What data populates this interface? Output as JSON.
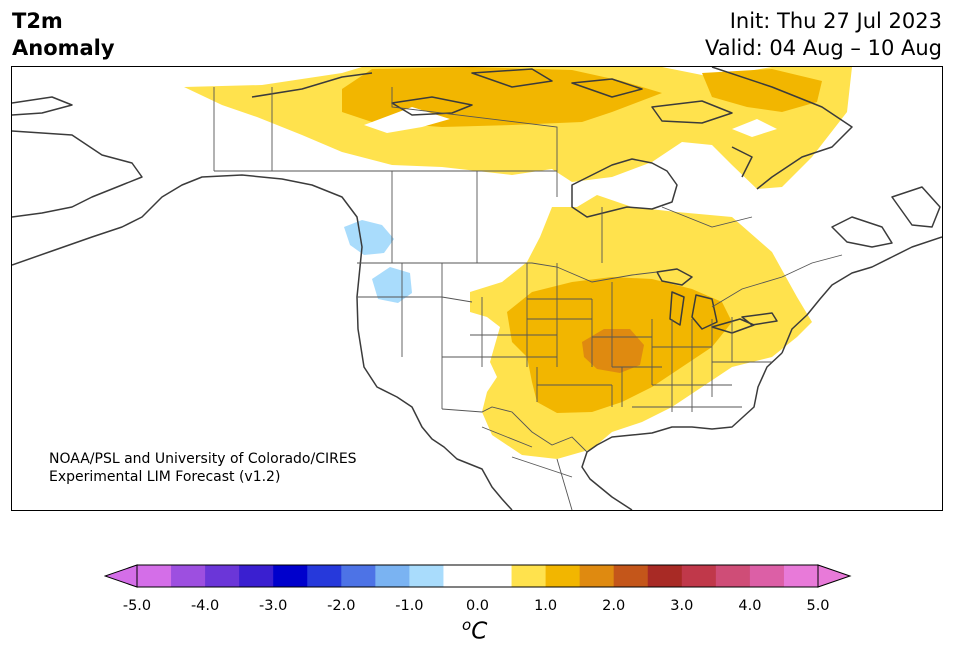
{
  "title": {
    "left_line1": "T2m",
    "left_line2": "Anomaly",
    "init": "Init: Thu 27 Jul 2023",
    "valid": "Valid: 04 Aug – 10 Aug"
  },
  "credit": {
    "line1": "NOAA/PSL and University of Colorado/CIRES",
    "line2": "Experimental LIM Forecast (v1.2)"
  },
  "colorbar": {
    "colors": [
      "#d46ee8",
      "#9d4fe0",
      "#6b36d8",
      "#3a1fd0",
      "#0000cc",
      "#2639db",
      "#4d73e6",
      "#7ab3f2",
      "#a9dcfc",
      "#ffffff",
      "#ffffff",
      "#ffe24d",
      "#f2b600",
      "#df8a10",
      "#c4561a",
      "#a82a25",
      "#c0384a",
      "#cf4d77",
      "#dc5fa6",
      "#e87ad9"
    ],
    "min_color": "#d46ee8",
    "max_color": "#e87ad9",
    "ticks": [
      "-5.0",
      "-4.0",
      "-3.0",
      "-2.0",
      "-1.0",
      "0.0",
      "1.0",
      "2.0",
      "3.0",
      "4.0",
      "5.0"
    ],
    "unit_prefix": "o",
    "unit": "C"
  },
  "anomaly_colors": {
    "light_warm": "#ffe24d",
    "warm": "#f2b600",
    "hot": "#df8a10",
    "cool": "#a9dcfc"
  }
}
